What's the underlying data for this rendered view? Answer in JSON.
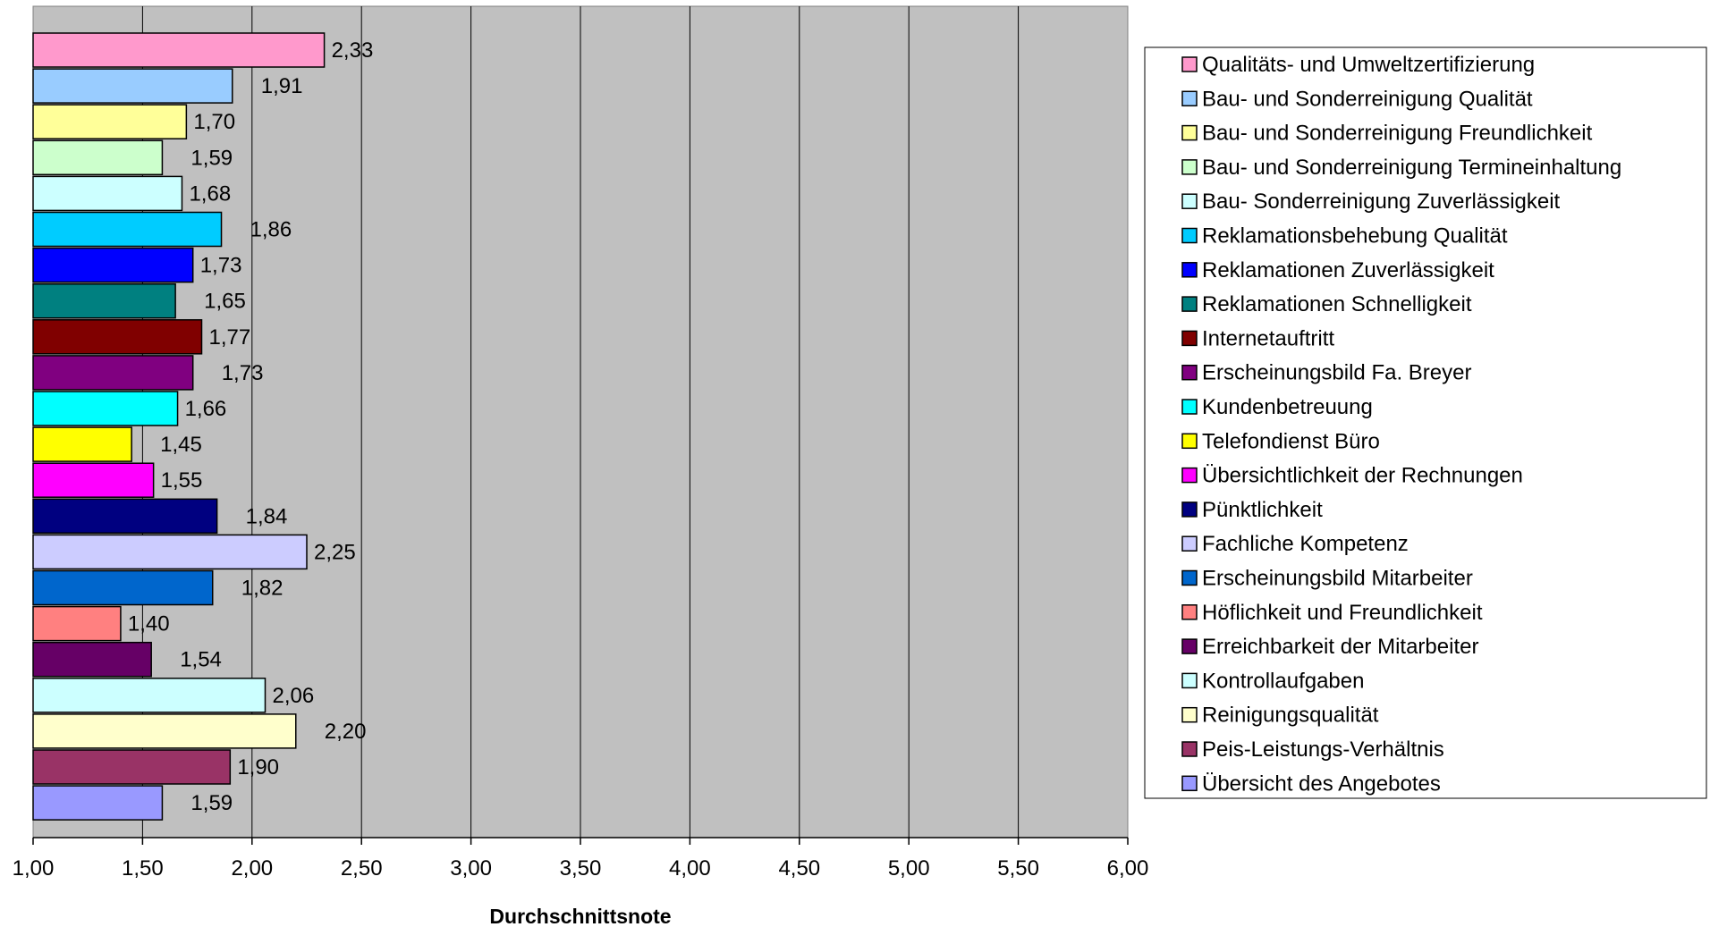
{
  "chart_data": {
    "type": "bar",
    "orientation": "horizontal",
    "xlabel": "Durchschnittsnote",
    "ylabel": "",
    "xlim": [
      1.0,
      6.0
    ],
    "x_ticks": [
      "1,00",
      "1,50",
      "2,00",
      "2,50",
      "3,00",
      "3,50",
      "4,00",
      "4,50",
      "5,00",
      "5,50",
      "6,00"
    ],
    "grid": true,
    "plot_background": "#c0c0c0",
    "legend_position": "right",
    "categories": [
      "Qualitäts- und Umweltzertifizierung",
      "Bau- und Sonderreinigung Qualität",
      "Bau- und Sonderreinigung Freundlichkeit",
      "Bau- und Sonderreinigung Termineinhaltung",
      "Bau- Sonderreinigung Zuverlässigkeit",
      "Reklamationsbehebung Qualität",
      "Reklamationen Zuverlässigkeit",
      "Reklamationen Schnelligkeit",
      "Internetauftritt",
      "Erscheinungsbild Fa. Breyer",
      "Kundenbetreuung",
      "Telefondienst Büro",
      "Übersichtlichkeit der Rechnungen",
      "Pünktlichkeit",
      "Fachliche Kompetenz",
      "Erscheinungsbild Mitarbeiter",
      "Höflichkeit und Freundlichkeit",
      "Erreichbarkeit der Mitarbeiter",
      "Kontrollaufgaben",
      "Reinigungsqualität",
      "Peis-Leistungs-Verhältnis",
      "Übersicht des Angebotes"
    ],
    "values": [
      2.33,
      1.91,
      1.7,
      1.59,
      1.68,
      1.86,
      1.73,
      1.65,
      1.77,
      1.73,
      1.66,
      1.45,
      1.55,
      1.84,
      2.25,
      1.82,
      1.4,
      1.54,
      2.06,
      2.2,
      1.9,
      1.59
    ],
    "value_labels": [
      "2,33",
      "1,91",
      "1,70",
      "1,59",
      "1,68",
      "1,86",
      "1,73",
      "1,65",
      "1,77",
      "1,73",
      "1,66",
      "1,45",
      "1,55",
      "1,84",
      "2,25",
      "1,82",
      "1,40",
      "1,54",
      "2,06",
      "2,20",
      "1,90",
      "1,59"
    ],
    "colors": [
      "#ff99cc",
      "#99ccff",
      "#ffff99",
      "#ccffcc",
      "#ccffff",
      "#00ccff",
      "#0000ff",
      "#008080",
      "#800000",
      "#800080",
      "#00ffff",
      "#ffff00",
      "#ff00ff",
      "#000080",
      "#ccccff",
      "#0066cc",
      "#ff8080",
      "#660066",
      "#ccffff",
      "#ffffcc",
      "#993366",
      "#9999ff"
    ]
  }
}
